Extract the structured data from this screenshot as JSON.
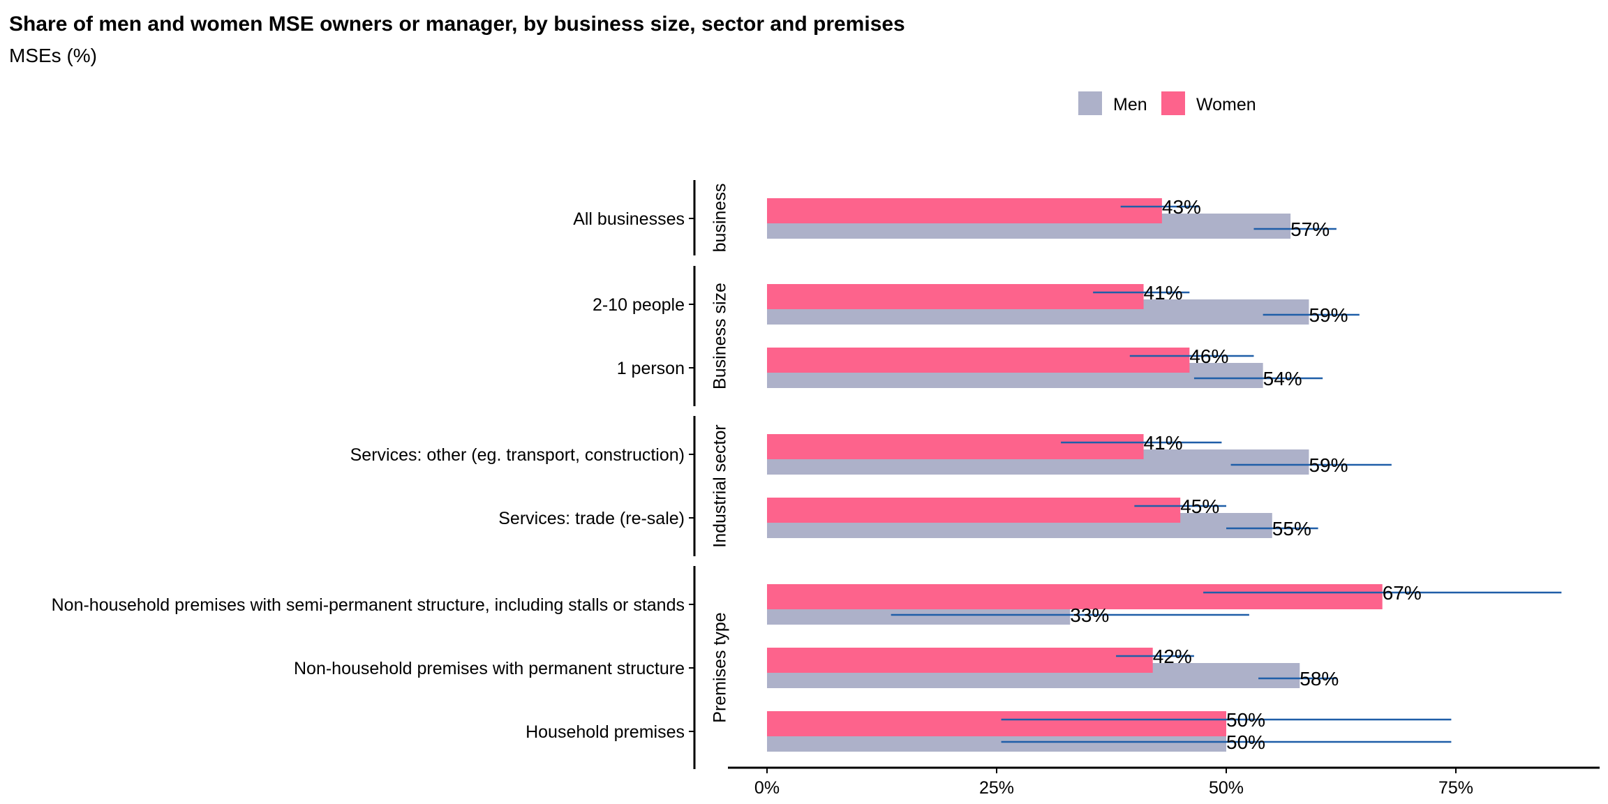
{
  "chart_data": {
    "type": "bar",
    "title": "Share of men and women MSE owners or manager, by business size, sector and premises",
    "subtitle": "MSEs (%)",
    "orientation": "horizontal",
    "legend_position": "top-right",
    "legend": [
      {
        "name": "Men",
        "color": "#adb1c9"
      },
      {
        "name": "Women",
        "color": "#fd638c"
      }
    ],
    "error_bar_color": "#1f5ea8",
    "xlim": [
      0,
      90
    ],
    "x_ticks": [
      0,
      25,
      50,
      75
    ],
    "x_tick_labels": [
      "0%",
      "25%",
      "50%",
      "75%"
    ],
    "groups": [
      {
        "label": "business",
        "categories": [
          {
            "label": "All businesses",
            "men": {
              "value": 57,
              "label": "57%",
              "ci": [
                53,
                62
              ]
            },
            "women": {
              "value": 43,
              "label": "43%",
              "ci": [
                38.5,
                47
              ]
            }
          }
        ]
      },
      {
        "label": "Business size",
        "categories": [
          {
            "label": "2-10 people",
            "men": {
              "value": 59,
              "label": "59%",
              "ci": [
                54,
                64.5
              ]
            },
            "women": {
              "value": 41,
              "label": "41%",
              "ci": [
                35.5,
                46
              ]
            }
          },
          {
            "label": "1 person",
            "men": {
              "value": 54,
              "label": "54%",
              "ci": [
                46.5,
                60.5
              ]
            },
            "women": {
              "value": 46,
              "label": "46%",
              "ci": [
                39.5,
                53
              ]
            }
          }
        ]
      },
      {
        "label": "Industrial sector",
        "categories": [
          {
            "label": "Services: other (eg. transport, construction)",
            "men": {
              "value": 59,
              "label": "59%",
              "ci": [
                50.5,
                68
              ]
            },
            "women": {
              "value": 41,
              "label": "41%",
              "ci": [
                32,
                49.5
              ]
            }
          },
          {
            "label": "Services: trade (re-sale)",
            "men": {
              "value": 55,
              "label": "55%",
              "ci": [
                50,
                60
              ]
            },
            "women": {
              "value": 45,
              "label": "45%",
              "ci": [
                40,
                50
              ]
            }
          }
        ]
      },
      {
        "label": "Premises type",
        "categories": [
          {
            "label": "Non-household premises with semi-permanent structure, including stalls or stands",
            "men": {
              "value": 33,
              "label": "33%",
              "ci": [
                13.5,
                52.5
              ]
            },
            "women": {
              "value": 67,
              "label": "67%",
              "ci": [
                47.5,
                86.5
              ]
            }
          },
          {
            "label": "Non-household premises with permanent structure",
            "men": {
              "value": 58,
              "label": "58%",
              "ci": [
                53.5,
                62
              ]
            },
            "women": {
              "value": 42,
              "label": "42%",
              "ci": [
                38,
                46.5
              ]
            }
          },
          {
            "label": "Household premises",
            "men": {
              "value": 50,
              "label": "50%",
              "ci": [
                25.5,
                74.5
              ]
            },
            "women": {
              "value": 50,
              "label": "50%",
              "ci": [
                25.5,
                74.5
              ]
            }
          }
        ]
      }
    ]
  }
}
